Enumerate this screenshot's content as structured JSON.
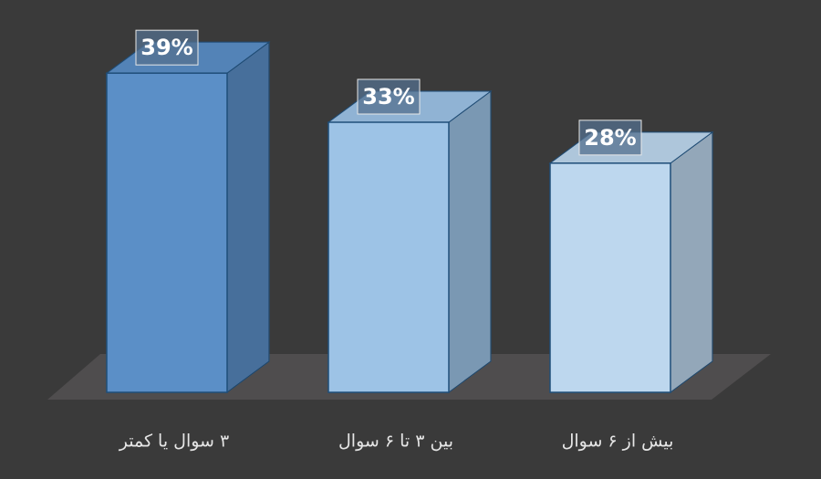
{
  "chart_data": {
    "type": "bar3d",
    "categories": [
      "۳ سوال یا کمتر",
      "بین ۳ تا ۶ سوال",
      "بیش از ۶ سوال"
    ],
    "values": [
      39,
      33,
      28
    ],
    "value_labels": [
      "39%",
      "33%",
      "28%"
    ],
    "colors": [
      "#5b8fc7",
      "#9dc3e6",
      "#bdd7ee"
    ]
  }
}
